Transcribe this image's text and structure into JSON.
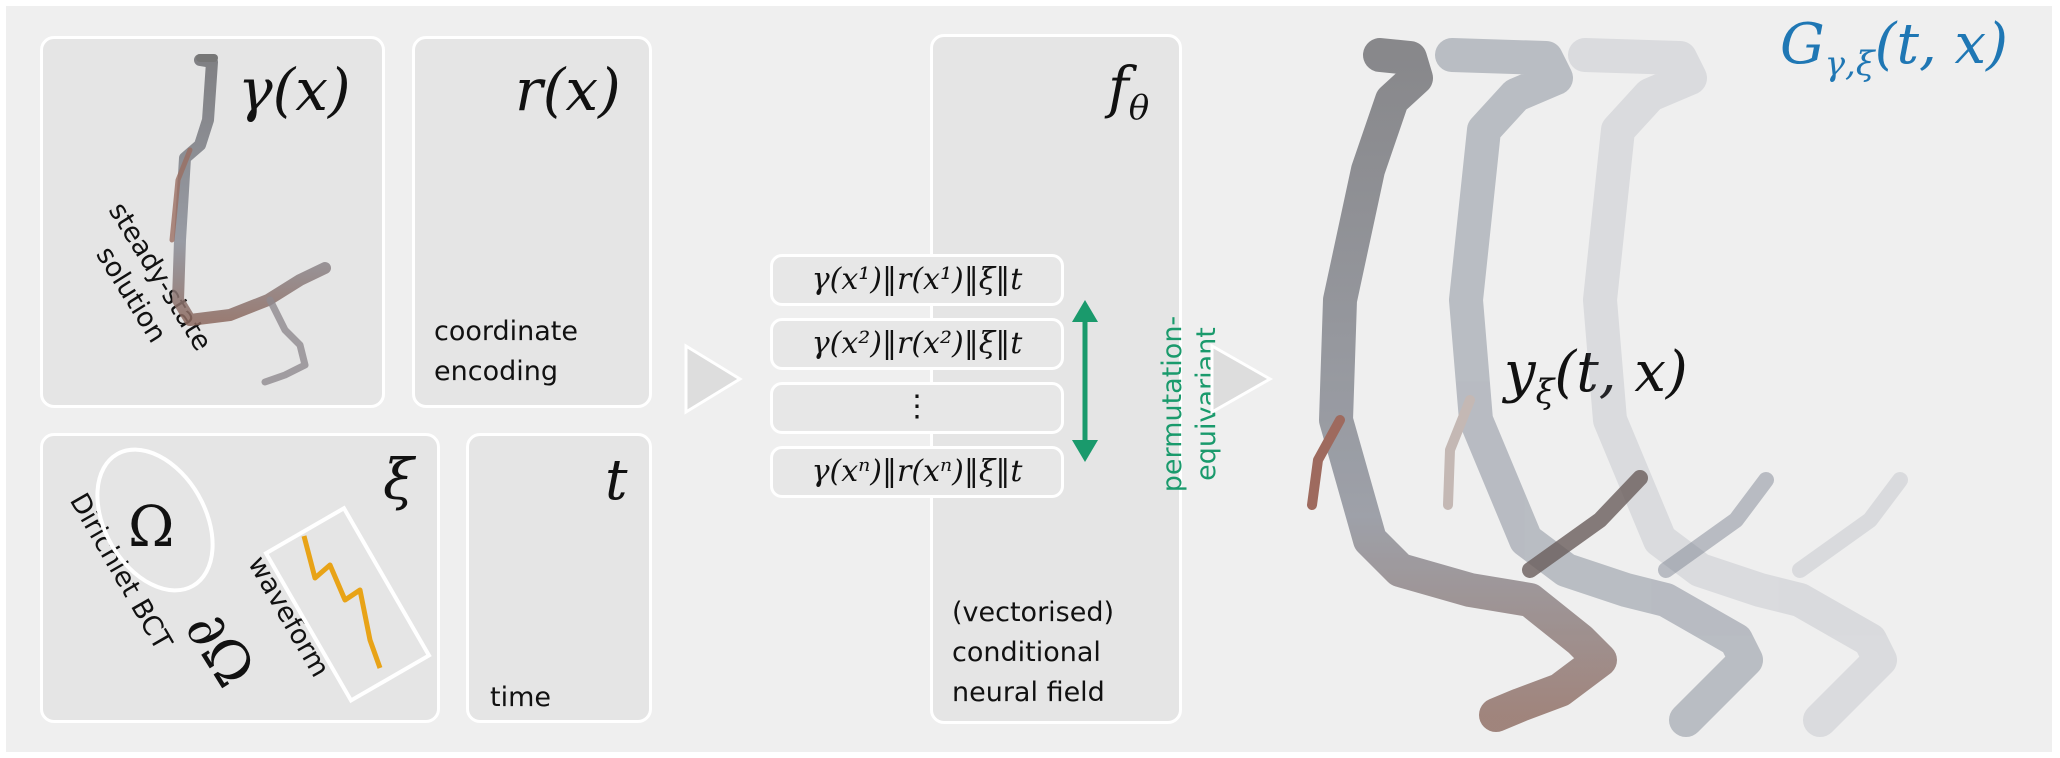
{
  "output_title": "Gγ,ξ(t, x)",
  "panels": {
    "gamma": {
      "symbol": "γ(x)",
      "note_lines": [
        "steady-state",
        "solution"
      ]
    },
    "r": {
      "symbol": "r(x)",
      "note_lines": [
        "coordinate",
        "encoding"
      ]
    },
    "xi": {
      "symbol": "ξ",
      "omega": "Ω",
      "boundary": "∂Ω",
      "bc_label": "Dirichlet BCT",
      "waveform_label": "waveform"
    },
    "t": {
      "symbol": "t",
      "note": "time"
    },
    "f": {
      "symbol": "fθ",
      "note_lines": [
        "(vectorised)",
        "conditional",
        "neural field"
      ]
    }
  },
  "input_rows": [
    "γ(x¹)‖r(x¹)‖ξ‖t",
    "γ(x²)‖r(x²)‖ξ‖t",
    "⋮",
    "γ(xⁿ)‖r(xⁿ)‖ξ‖t"
  ],
  "permutation_label_lines": [
    "permutation-",
    "equivariant"
  ],
  "output_symbol": "yξ(t, x)",
  "colors": {
    "background": "#efefef",
    "panel": "#e5e5e5",
    "accent_title": "#1f77b4",
    "equivariant_green": "#1a9a6c",
    "waveform_orange": "#e8a317",
    "arrow_triangle": "#dddddd"
  }
}
